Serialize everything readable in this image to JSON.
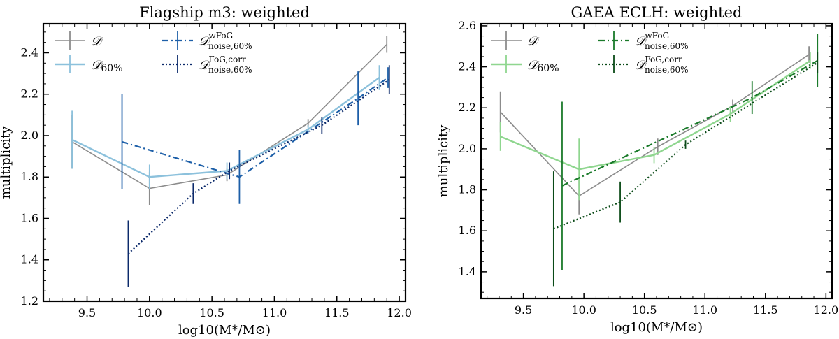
{
  "chart_data": [
    {
      "type": "line",
      "title": "Flagship m3: weighted",
      "xlabel": "log10(M*/M⊙)",
      "ylabel": "multiplicity",
      "xlim": [
        9.15,
        12.05
      ],
      "ylim": [
        1.2,
        2.54
      ],
      "xticks": [
        9.5,
        10.0,
        10.5,
        11.0,
        11.5,
        12.0
      ],
      "xtick_labels": [
        "9.5",
        "10.0",
        "10.5",
        "11.0",
        "11.5",
        "12.0"
      ],
      "yticks": [
        1.2,
        1.4,
        1.6,
        1.8,
        2.0,
        2.2,
        2.4
      ],
      "ytick_labels": [
        "1.2",
        "1.4",
        "1.6",
        "1.8",
        "2.0",
        "2.2",
        "2.4"
      ],
      "series": [
        {
          "name": "D",
          "label_main": "𝒟",
          "label_sup": "",
          "label_sub": "",
          "color": "#8c8c8c",
          "dash": "",
          "width": 1.6,
          "x": [
            9.38,
            10.0,
            10.62,
            11.27,
            11.9
          ],
          "y": [
            1.97,
            1.745,
            1.81,
            2.06,
            2.44
          ],
          "err": [
            0.13,
            0.08,
            0.03,
            0.02,
            0.04
          ]
        },
        {
          "name": "D60%",
          "label_main": "𝒟",
          "label_sup": "",
          "label_sub": "60%",
          "color": "#8cc1dc",
          "dash": "",
          "width": 2.4,
          "x": [
            9.38,
            10.0,
            10.62,
            11.27,
            11.84
          ],
          "y": [
            1.98,
            1.8,
            1.83,
            2.03,
            2.28
          ],
          "err": [
            0.14,
            0.06,
            0.04,
            0.02,
            0.06
          ]
        },
        {
          "name": "DwFoG noise,60%",
          "label_main": "𝒟",
          "label_sup": "wFoG",
          "label_sub": "noise,60%",
          "color": "#1d5fa8",
          "dash": "9,4,2,4",
          "width": 2.2,
          "x": [
            9.78,
            10.72,
            11.67,
            11.91
          ],
          "y": [
            1.97,
            1.8,
            2.18,
            2.28
          ],
          "err": [
            0.23,
            0.13,
            0.13,
            0.05
          ]
        },
        {
          "name": "DFoG,corr noise,60%",
          "label_main": "𝒟",
          "label_sup": "FoG,corr",
          "label_sub": "noise,60%",
          "color": "#0c2a6b",
          "dash": "2,3",
          "width": 2.2,
          "x": [
            9.83,
            10.35,
            10.64,
            11.38,
            11.92
          ],
          "y": [
            1.43,
            1.72,
            1.83,
            2.05,
            2.27
          ],
          "err": [
            0.16,
            0.05,
            0.04,
            0.04,
            0.07
          ]
        }
      ]
    },
    {
      "type": "line",
      "title": "GAEA ECLH: weighted",
      "xlabel": "log10(M*/M⊙)",
      "ylabel": "multiplicity",
      "xlim": [
        9.15,
        12.05
      ],
      "ylim": [
        1.27,
        2.61
      ],
      "xticks": [
        9.5,
        10.0,
        10.5,
        11.0,
        11.5,
        12.0
      ],
      "xtick_labels": [
        "9.5",
        "10.0",
        "10.5",
        "11.0",
        "11.5",
        "12.0"
      ],
      "yticks": [
        1.4,
        1.6,
        1.8,
        2.0,
        2.2,
        2.4,
        2.6
      ],
      "ytick_labels": [
        "1.4",
        "1.6",
        "1.8",
        "2.0",
        "2.2",
        "2.4",
        "2.6"
      ],
      "series": [
        {
          "name": "D",
          "label_main": "𝒟",
          "label_sup": "",
          "label_sub": "",
          "color": "#8c8c8c",
          "dash": "",
          "width": 1.6,
          "x": [
            9.31,
            9.96,
            10.61,
            11.23,
            11.86
          ],
          "y": [
            2.18,
            1.77,
            2.01,
            2.21,
            2.46
          ],
          "err": [
            0.1,
            0.09,
            0.04,
            0.03,
            0.04
          ]
        },
        {
          "name": "D60%",
          "label_main": "𝒟",
          "label_sup": "",
          "label_sub": "60%",
          "color": "#8fd68f",
          "dash": "",
          "width": 2.4,
          "x": [
            9.31,
            9.96,
            10.58,
            11.21,
            11.87
          ],
          "y": [
            2.06,
            1.9,
            1.97,
            2.17,
            2.43
          ],
          "err": [
            0.07,
            0.15,
            0.04,
            0.04,
            0.04
          ]
        },
        {
          "name": "DwFoG noise,60%",
          "label_main": "𝒟",
          "label_sup": "wFoG",
          "label_sub": "noise,60%",
          "color": "#1a7a2a",
          "dash": "9,4,2,4",
          "width": 2.2,
          "x": [
            9.82,
            11.39,
            11.93
          ],
          "y": [
            1.82,
            2.25,
            2.43
          ],
          "err": [
            0.41,
            0.08,
            0.13
          ]
        },
        {
          "name": "DFoG,corr noise,60%",
          "label_main": "𝒟",
          "label_sup": "FoG,corr",
          "label_sub": "noise,60%",
          "color": "#0a4a17",
          "dash": "2,3",
          "width": 2.2,
          "x": [
            9.75,
            10.3,
            10.84,
            11.93
          ],
          "y": [
            1.61,
            1.74,
            2.02,
            2.42
          ],
          "err": [
            0.28,
            0.1,
            0.02,
            0.05
          ]
        }
      ]
    }
  ]
}
